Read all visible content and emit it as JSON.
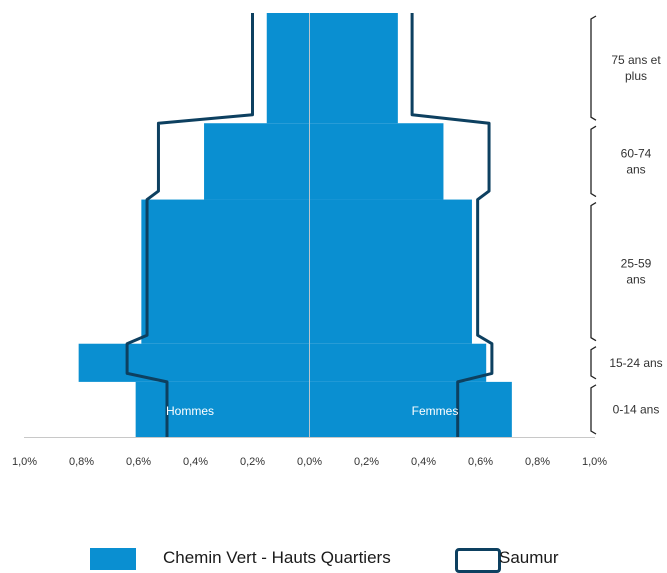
{
  "chart_data": {
    "type": "population-pyramid",
    "age_groups": [
      "0-14 ans",
      "15-24 ans",
      "25-59 ans",
      "60-74 ans",
      "75 ans et plus"
    ],
    "bracket_labels": [
      {
        "lines": [
          "0-14 ans"
        ]
      },
      {
        "lines": [
          "15-24 ans"
        ]
      },
      {
        "lines": [
          "25-59",
          "ans"
        ]
      },
      {
        "lines": [
          "60-74",
          "ans"
        ]
      },
      {
        "lines": [
          "75 ans et",
          "plus"
        ]
      }
    ],
    "x_ticks": [
      "1,0%",
      "0,8%",
      "0,6%",
      "0,4%",
      "0,2%",
      "0,0%",
      "0,2%",
      "0,4%",
      "0,6%",
      "0,8%",
      "1,0%"
    ],
    "xlim": [
      -1.0,
      1.0
    ],
    "side_labels": {
      "left": "Hommes",
      "right": "Femmes"
    },
    "series": [
      {
        "name": "Chemin Vert - Hauts Quartiers",
        "style": "filled",
        "color": "#0a8fd1",
        "bands": [
          {
            "age_from": 0,
            "age_to": 13,
            "hommes": 0.61,
            "femmes": 0.71
          },
          {
            "age_from": 13,
            "age_to": 22,
            "hommes": 0.81,
            "femmes": 0.62
          },
          {
            "age_from": 22,
            "age_to": 56,
            "hommes": 0.59,
            "femmes": 0.57
          },
          {
            "age_from": 56,
            "age_to": 74,
            "hommes": 0.37,
            "femmes": 0.47
          },
          {
            "age_from": 74,
            "age_to": 100,
            "hommes": 0.15,
            "femmes": 0.31
          }
        ]
      },
      {
        "name": "Saumur",
        "style": "outline",
        "color": "#0d4060",
        "outline": [
          {
            "age": 0,
            "hommes": 0.5,
            "femmes": 0.52
          },
          {
            "age": 13,
            "hommes": 0.5,
            "femmes": 0.52
          },
          {
            "age": 15,
            "hommes": 0.64,
            "femmes": 0.64
          },
          {
            "age": 22,
            "hommes": 0.64,
            "femmes": 0.64
          },
          {
            "age": 24,
            "hommes": 0.57,
            "femmes": 0.59
          },
          {
            "age": 56,
            "hommes": 0.57,
            "femmes": 0.59
          },
          {
            "age": 58,
            "hommes": 0.53,
            "femmes": 0.63
          },
          {
            "age": 74,
            "hommes": 0.53,
            "femmes": 0.63
          },
          {
            "age": 76,
            "hommes": 0.2,
            "femmes": 0.36
          },
          {
            "age": 100,
            "hommes": 0.2,
            "femmes": 0.36
          }
        ]
      }
    ],
    "legend_position": "bottom"
  },
  "legend": {
    "items": [
      {
        "label": "Chemin Vert - Hauts Quartiers"
      },
      {
        "label": "Saumur"
      }
    ]
  }
}
